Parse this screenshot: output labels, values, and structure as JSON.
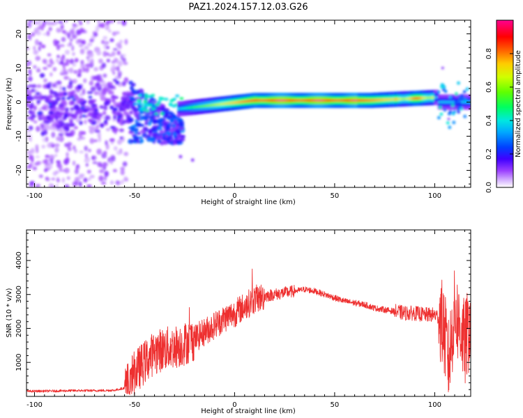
{
  "title": "PAZ1.2024.157.12.03.G26",
  "chart_data": [
    {
      "type": "heatmap",
      "xlabel": "Height of straight line (km)",
      "ylabel": "Frequency (Hz)",
      "xlim": [
        -104,
        118
      ],
      "ylim": [
        -25,
        24
      ],
      "xticks": [
        -100,
        -50,
        0,
        50,
        100
      ],
      "yticks": [
        -20,
        -10,
        0,
        10,
        20
      ],
      "colorbar": {
        "label": "Normalized spectral amplitude",
        "range": [
          0,
          1
        ],
        "ticks": [
          "0.0",
          "0.2",
          "0.4",
          "0.6",
          "0.8"
        ],
        "colormap": "gist_ncar_r-like",
        "colors": [
          "#ffffff",
          "#9b40ff",
          "#4000ff",
          "#0040ff",
          "#00d0ff",
          "#00ff60",
          "#c0ff00",
          "#ffcc00",
          "#ff0000",
          "#ff0080"
        ]
      },
      "features": [
        {
          "x_range": [
            -104,
            -55
          ],
          "freq_spread": [
            -25,
            24
          ],
          "amplitude": 0.1
        },
        {
          "x_range": [
            -52,
            -28
          ],
          "freq_center": 0,
          "freq_spread": [
            -12,
            6
          ],
          "amplitude": 0.35
        },
        {
          "x_range": [
            -28,
            10
          ],
          "freq_center_start": -2,
          "freq_center_end": 0.5,
          "amplitude": 0.55
        },
        {
          "x_range": [
            10,
            68
          ],
          "freq_center": 0.5,
          "amplitude": 0.95
        },
        {
          "x_range": [
            68,
            102
          ],
          "freq_center": 1.2,
          "amplitude": 0.8
        },
        {
          "x_range": [
            102,
            118
          ],
          "freq_center": 0,
          "amplitude": 0.45
        }
      ]
    },
    {
      "type": "line",
      "xlabel": "Height of straight line (km)",
      "ylabel": "SNR (10 * v/v)",
      "xlim": [
        -104,
        118
      ],
      "ylim": [
        0,
        4900
      ],
      "xticks": [
        -100,
        -50,
        0,
        50,
        100
      ],
      "yticks": [
        1000,
        2000,
        3000,
        4000
      ],
      "color": "#ee3030",
      "series": [
        {
          "x": [
            -104,
            -90,
            -80,
            -70,
            -60,
            -55,
            -52,
            -50,
            -45,
            -40,
            -35,
            -30,
            -25,
            -20,
            -15,
            -10,
            -5,
            0,
            5,
            10,
            15,
            20,
            25,
            30,
            35,
            40,
            45,
            50,
            55,
            60,
            65,
            70,
            75,
            80,
            85,
            90,
            95,
            100,
            103,
            105,
            107,
            110,
            113,
            115,
            118
          ],
          "y": [
            150,
            160,
            170,
            170,
            180,
            250,
            500,
            700,
            1000,
            1300,
            1400,
            1450,
            1550,
            1700,
            1900,
            2100,
            2300,
            2450,
            2650,
            2850,
            2950,
            3000,
            3050,
            3100,
            3150,
            3100,
            3000,
            2900,
            2800,
            2750,
            2700,
            2600,
            2550,
            2500,
            2450,
            2450,
            2400,
            2400,
            2300,
            1800,
            1000,
            2500,
            2000,
            1500,
            2200
          ]
        }
      ]
    }
  ]
}
